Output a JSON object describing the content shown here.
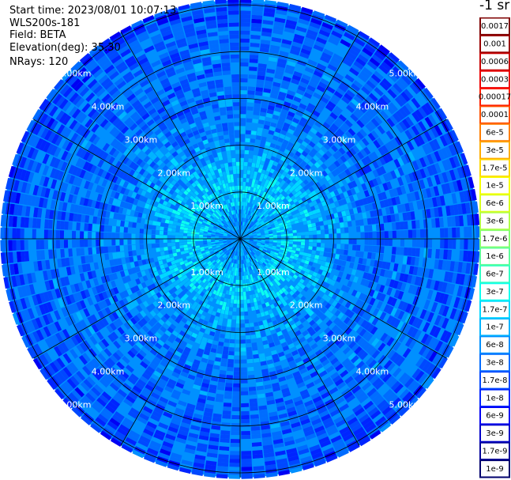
{
  "header": {
    "start_time": "Start time: 2023/08/01 10:07:13",
    "device": "WLS200s-181",
    "field": "Field: BETA",
    "elevation": "Elevation(deg): 35.30",
    "nrays": "NRays: 120"
  },
  "colorbar": {
    "unit_label": "-1 sr",
    "ticks": [
      "0.0017",
      "0.001",
      "0.0006",
      "0.0003",
      "0.00017",
      "0.0001",
      "6e-5",
      "3e-5",
      "1.7e-5",
      "1e-5",
      "6e-6",
      "3e-6",
      "1.7e-6",
      "1e-6",
      "6e-7",
      "3e-7",
      "1.7e-7",
      "1e-7",
      "6e-8",
      "3e-8",
      "1.7e-8",
      "1e-8",
      "6e-9",
      "3e-9",
      "1.7e-9",
      "1e-9"
    ],
    "colors": [
      "#7f0000",
      "#9a0000",
      "#c80000",
      "#ee0000",
      "#ff1e00",
      "#ff5000",
      "#ff7f00",
      "#ffad00",
      "#ffd800",
      "#f6ff00",
      "#d8ff1e",
      "#b0ff48",
      "#86ff70",
      "#5cff9a",
      "#33ffc4",
      "#0cfff0",
      "#00d8ff",
      "#00b4ff",
      "#0090ff",
      "#006cff",
      "#0048ff",
      "#0024ff",
      "#0000f4",
      "#0000c8",
      "#00009a",
      "#00006c"
    ]
  },
  "chart_data": {
    "type": "heatmap",
    "projection": "polar (PPI)",
    "field": "BETA",
    "n_rays": 120,
    "elevation_deg": 35.3,
    "range_rings_km": [
      1,
      2,
      3,
      4,
      5
    ],
    "ring_labels": [
      "1.00km",
      "2.00km",
      "3.00km",
      "4.00km",
      "5.00km"
    ],
    "radial_gridlines_deg": [
      0,
      30,
      60,
      90,
      120,
      150,
      180,
      210,
      240,
      270,
      300,
      330
    ],
    "max_range_km": 5.1,
    "value_profile": [
      {
        "range_km": 0.3,
        "beta": 6e-08
      },
      {
        "range_km": 1.0,
        "beta": 1.7e-07
      },
      {
        "range_km": 1.5,
        "beta": 1e-07
      },
      {
        "range_km": 2.0,
        "beta": 6e-08
      },
      {
        "range_km": 3.0,
        "beta": 3e-08
      },
      {
        "range_km": 4.0,
        "beta": 3e-08
      },
      {
        "range_km": 5.0,
        "beta": 1.7e-08
      }
    ]
  }
}
